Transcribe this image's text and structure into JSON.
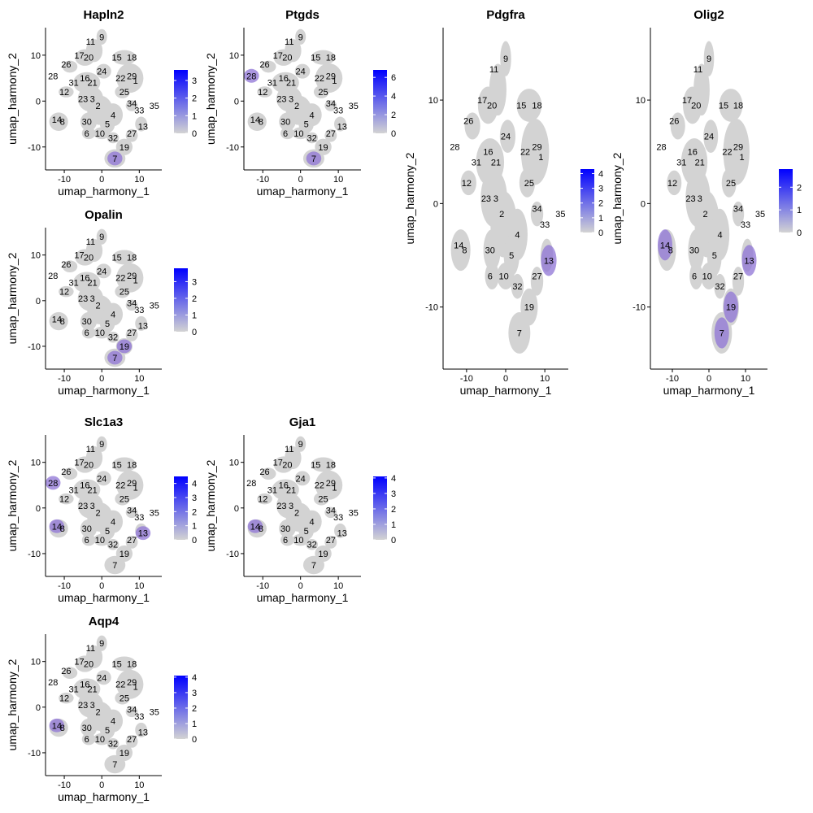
{
  "chart_data": [
    {
      "type": "scatter",
      "title": "Hapln2",
      "xlabel": "umap_harmony_1",
      "ylabel": "umap_harmony_2",
      "xticks": [
        -10,
        0,
        10
      ],
      "yticks": [
        -10,
        0,
        10
      ],
      "xlim": [
        -15,
        16
      ],
      "ylim": [
        -15,
        16
      ],
      "legend_ticks": [
        0,
        1,
        2,
        3
      ],
      "legend_max": 3.6,
      "hotspots": [
        "7"
      ]
    },
    {
      "type": "scatter",
      "title": "Ptgds",
      "xlabel": "umap_harmony_1",
      "ylabel": "umap_harmony_2",
      "xticks": [
        -10,
        0,
        10
      ],
      "yticks": [
        -10,
        0,
        10
      ],
      "xlim": [
        -15,
        16
      ],
      "ylim": [
        -15,
        16
      ],
      "legend_ticks": [
        0,
        2,
        4,
        6
      ],
      "legend_max": 6.8,
      "hotspots": [
        "7",
        "28"
      ]
    },
    {
      "type": "scatter",
      "title": "Pdgfra",
      "xlabel": "umap_harmony_1",
      "ylabel": "umap_harmony_2",
      "xticks": [
        -10,
        0,
        10
      ],
      "yticks": [
        -10,
        0,
        10
      ],
      "xlim": [
        -16,
        16
      ],
      "ylim": [
        -16,
        17
      ],
      "legend_ticks": [
        0,
        1,
        2,
        3,
        4
      ],
      "legend_max": 4.3,
      "hotspots": [
        "13"
      ]
    },
    {
      "type": "scatter",
      "title": "Olig2",
      "xlabel": "umap_harmony_1",
      "ylabel": "umap_harmony_2",
      "xticks": [
        -10,
        0,
        10
      ],
      "yticks": [
        -10,
        0,
        10
      ],
      "xlim": [
        -16,
        16
      ],
      "ylim": [
        -16,
        17
      ],
      "legend_ticks": [
        0,
        1,
        2
      ],
      "legend_max": 2.8,
      "hotspots": [
        "7",
        "19",
        "13",
        "14"
      ]
    },
    {
      "type": "scatter",
      "title": "Opalin",
      "xlabel": "umap_harmony_1",
      "ylabel": "umap_harmony_2",
      "xticks": [
        -10,
        0,
        10
      ],
      "yticks": [
        -10,
        0,
        10
      ],
      "xlim": [
        -15,
        16
      ],
      "ylim": [
        -15,
        16
      ],
      "legend_ticks": [
        0,
        1,
        2,
        3
      ],
      "legend_max": 3.8,
      "hotspots": [
        "7",
        "19"
      ]
    },
    {
      "type": "scatter",
      "title": "Slc1a3",
      "xlabel": "umap_harmony_1",
      "ylabel": "umap_harmony_2",
      "xticks": [
        -10,
        0,
        10
      ],
      "yticks": [
        -10,
        0,
        10
      ],
      "xlim": [
        -15,
        16
      ],
      "ylim": [
        -15,
        16
      ],
      "legend_ticks": [
        0,
        1,
        2,
        3,
        4
      ],
      "legend_max": 4.5,
      "hotspots": [
        "14",
        "28",
        "13"
      ]
    },
    {
      "type": "scatter",
      "title": "Gja1",
      "xlabel": "umap_harmony_1",
      "ylabel": "umap_harmony_2",
      "xticks": [
        -10,
        0,
        10
      ],
      "yticks": [
        -10,
        0,
        10
      ],
      "xlim": [
        -15,
        16
      ],
      "ylim": [
        -15,
        16
      ],
      "legend_ticks": [
        0,
        1,
        2,
        3,
        4
      ],
      "legend_max": 4.1,
      "hotspots": [
        "14"
      ]
    },
    {
      "type": "scatter",
      "title": "Aqp4",
      "xlabel": "umap_harmony_1",
      "ylabel": "umap_harmony_2",
      "xticks": [
        -10,
        0,
        10
      ],
      "yticks": [
        -10,
        0,
        10
      ],
      "xlim": [
        -15,
        16
      ],
      "ylim": [
        -15,
        16
      ],
      "legend_ticks": [
        0,
        1,
        2,
        3,
        4
      ],
      "legend_max": 4.1,
      "hotspots": [
        "14"
      ]
    }
  ],
  "clusters": [
    {
      "label": "9",
      "x": 0,
      "y": 14
    },
    {
      "label": "11",
      "x": -3,
      "y": 13
    },
    {
      "label": "17",
      "x": -6,
      "y": 10
    },
    {
      "label": "20",
      "x": -3.5,
      "y": 9.5
    },
    {
      "label": "15",
      "x": 4,
      "y": 9.5
    },
    {
      "label": "18",
      "x": 8,
      "y": 9.5
    },
    {
      "label": "26",
      "x": -9.5,
      "y": 8
    },
    {
      "label": "24",
      "x": 0,
      "y": 6.5
    },
    {
      "label": "29",
      "x": 8,
      "y": 5.5
    },
    {
      "label": "22",
      "x": 5,
      "y": 5
    },
    {
      "label": "1",
      "x": 9,
      "y": 4.5
    },
    {
      "label": "28",
      "x": -13,
      "y": 5.5
    },
    {
      "label": "16",
      "x": -4.5,
      "y": 5
    },
    {
      "label": "31",
      "x": -7.5,
      "y": 4
    },
    {
      "label": "21",
      "x": -2.5,
      "y": 4
    },
    {
      "label": "12",
      "x": -10,
      "y": 2
    },
    {
      "label": "25",
      "x": 6,
      "y": 2
    },
    {
      "label": "23",
      "x": -5,
      "y": 0.5
    },
    {
      "label": "3",
      "x": -2.5,
      "y": 0.5
    },
    {
      "label": "2",
      "x": -1,
      "y": -1
    },
    {
      "label": "34",
      "x": 8,
      "y": -0.5
    },
    {
      "label": "35",
      "x": 14,
      "y": -1
    },
    {
      "label": "4",
      "x": 3,
      "y": -3
    },
    {
      "label": "33",
      "x": 10,
      "y": -2
    },
    {
      "label": "14",
      "x": -12,
      "y": -4
    },
    {
      "label": "8",
      "x": -10.5,
      "y": -4.5
    },
    {
      "label": "30",
      "x": -4,
      "y": -4.5
    },
    {
      "label": "5",
      "x": 1.5,
      "y": -5
    },
    {
      "label": "13",
      "x": 11,
      "y": -5.5
    },
    {
      "label": "6",
      "x": -4,
      "y": -7
    },
    {
      "label": "10",
      "x": -0.5,
      "y": -7
    },
    {
      "label": "32",
      "x": 3,
      "y": -8
    },
    {
      "label": "27",
      "x": 8,
      "y": -7
    },
    {
      "label": "19",
      "x": 6,
      "y": -10
    },
    {
      "label": "7",
      "x": 3.5,
      "y": -12.5
    }
  ],
  "colors": {
    "low": "#d3d3d3",
    "high": "#0000ff",
    "expr": "#8f74d6"
  }
}
